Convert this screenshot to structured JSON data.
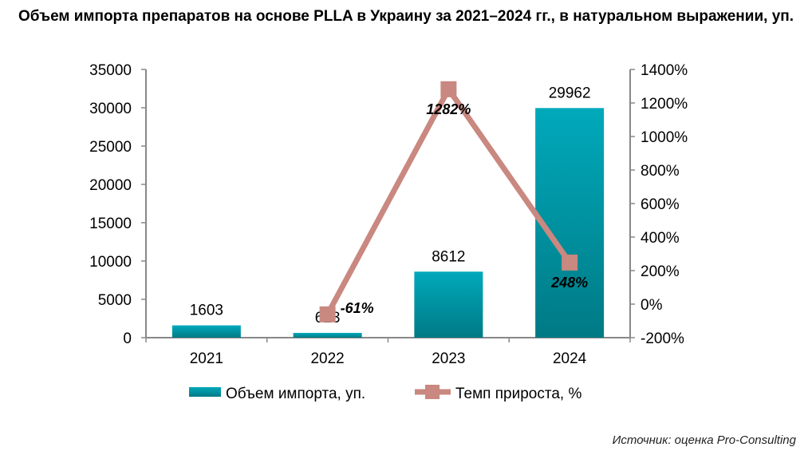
{
  "chart_data": {
    "type": "bar+line",
    "title": "Объем импорта препаратов на основе PLLA в Украину за 2021–2024 гг., в натуральном выражении, уп.",
    "categories": [
      "2021",
      "2022",
      "2023",
      "2024"
    ],
    "series": [
      {
        "name": "Объем импорта, уп.",
        "type": "bar",
        "axis": "left",
        "values": [
          1603,
          623,
          8612,
          29962
        ],
        "labels": [
          "1603",
          "623",
          "8612",
          "29962"
        ]
      },
      {
        "name": "Темп прироста, %",
        "type": "line",
        "axis": "right",
        "values": [
          null,
          -61,
          1282,
          248
        ],
        "labels": [
          "",
          "-61%",
          "1282%",
          "248%"
        ]
      }
    ],
    "y_left": {
      "lim": [
        0,
        35000
      ],
      "ticks": [
        "0",
        "5000",
        "10000",
        "15000",
        "20000",
        "25000",
        "30000",
        "35000"
      ]
    },
    "y_right": {
      "lim": [
        -200,
        1400
      ],
      "ticks": [
        "-200%",
        "0%",
        "200%",
        "400%",
        "600%",
        "800%",
        "1000%",
        "1200%",
        "1400%"
      ]
    },
    "legend": "bottom",
    "grid": false,
    "colors": {
      "bar_top": "#00a9bb",
      "bar_bottom": "#007a85",
      "line": "#c98880",
      "axis": "#888888"
    }
  },
  "source": "Источник: оценка Pro-Consulting"
}
